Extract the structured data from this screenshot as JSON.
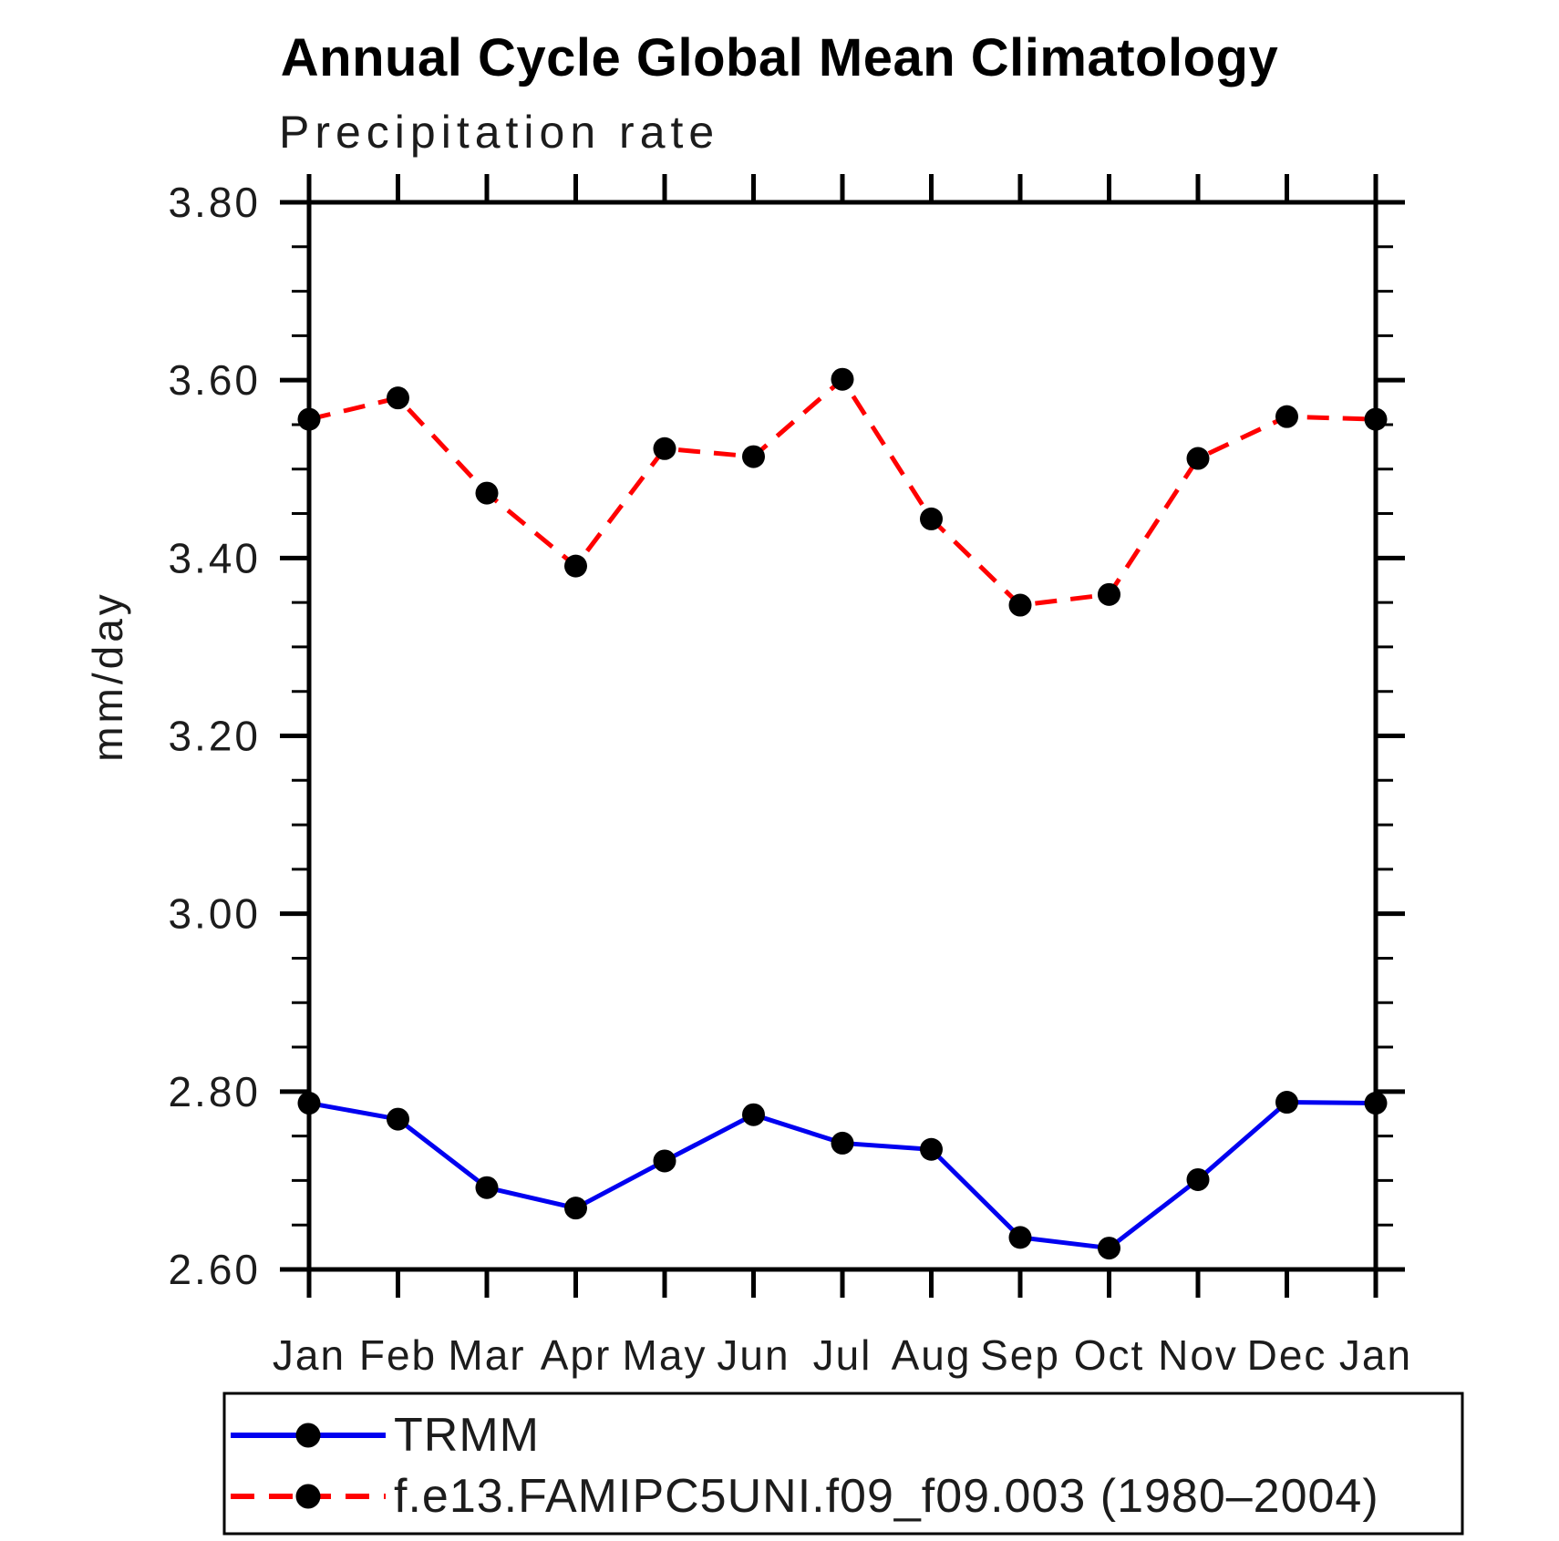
{
  "header": {
    "title": "Annual Cycle Global Mean Climatology",
    "subtitle": "Precipitation rate"
  },
  "axes": {
    "y_title": "mm/day",
    "y_tick_labels": [
      "2.60",
      "2.80",
      "3.00",
      "3.20",
      "3.40",
      "3.60",
      "3.80"
    ],
    "axis_color": "#000000"
  },
  "chart_data": {
    "type": "line",
    "title": "Annual Cycle Global Mean Climatology",
    "subtitle": "Precipitation rate",
    "xlabel": "",
    "ylabel": "mm/day",
    "categories": [
      "Jan",
      "Feb",
      "Mar",
      "Apr",
      "May",
      "Jun",
      "Jul",
      "Aug",
      "Sep",
      "Oct",
      "Nov",
      "Dec",
      "Jan"
    ],
    "ylim": [
      2.6,
      3.8
    ],
    "ytick_step": 0.2,
    "yminor_step": 0.05,
    "grid": false,
    "legend_position": "bottom",
    "series": [
      {
        "name": "TRMM",
        "color": "#0000f0",
        "line_style": "solid",
        "marker": "circle",
        "marker_color": "#000000",
        "values": [
          2.787,
          2.769,
          2.692,
          2.669,
          2.722,
          2.774,
          2.742,
          2.735,
          2.636,
          2.624,
          2.701,
          2.788,
          2.787
        ]
      },
      {
        "name": "f.e13.FAMIPC5UNI.f09_f09.003 (1980–2004)",
        "color": "#ff0000",
        "line_style": "dashed",
        "marker": "circle",
        "marker_color": "#000000",
        "values": [
          3.556,
          3.58,
          3.473,
          3.391,
          3.523,
          3.514,
          3.601,
          3.444,
          3.347,
          3.359,
          3.512,
          3.559,
          3.556
        ]
      }
    ]
  },
  "legend": {
    "entries": [
      {
        "label": "TRMM"
      },
      {
        "label": "f.e13.FAMIPC5UNI.f09_f09.003 (1980–2004)"
      }
    ]
  }
}
